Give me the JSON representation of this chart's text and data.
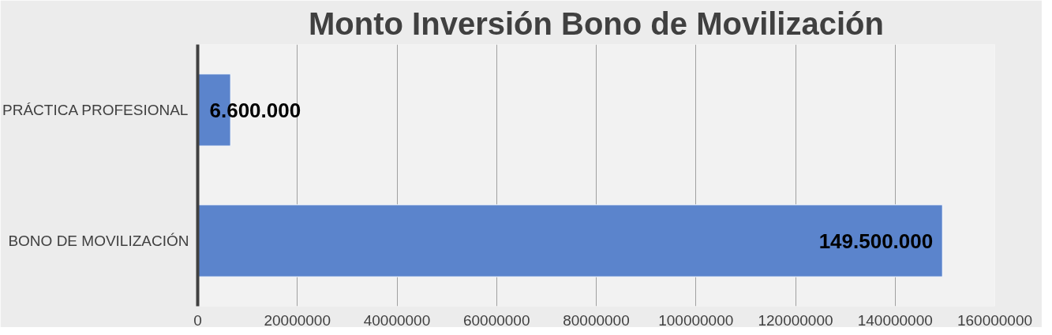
{
  "chart_data": {
    "type": "bar",
    "orientation": "horizontal",
    "title": "Monto Inversión Bono de Movilización",
    "categories": [
      "PRÁCTICA PROFESIONAL",
      "BONO DE MOVILIZACIÓN"
    ],
    "values": [
      6600000,
      149500000
    ],
    "value_labels": [
      "6.600.000",
      "149.500.000"
    ],
    "color": "#5b84cc",
    "xlim": [
      0,
      160000000
    ],
    "xticks": [
      0,
      20000000,
      40000000,
      60000000,
      80000000,
      100000000,
      120000000,
      140000000,
      160000000
    ],
    "grid": "x"
  }
}
